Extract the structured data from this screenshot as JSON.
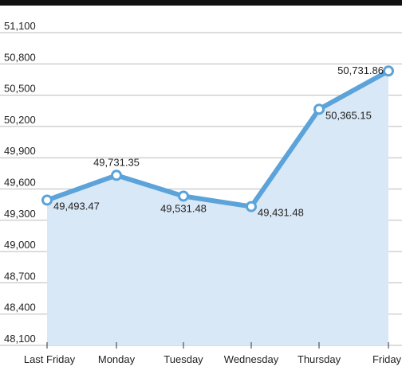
{
  "chart_data": {
    "type": "line",
    "categories": [
      "Last Friday",
      "Monday",
      "Tuesday",
      "Wednesday",
      "Thursday",
      "Friday"
    ],
    "values": [
      49493.47,
      49731.35,
      49531.48,
      49431.48,
      50365.15,
      50731.86
    ],
    "value_labels": [
      "49,493.47",
      "49,731.35",
      "49,531.48",
      "49,431.48",
      "50,365.15",
      "50,731.86"
    ],
    "color": "#5ba3d9",
    "area_color": "#d9e8f7",
    "ylim": [
      48100,
      51100
    ],
    "yticks": [
      {
        "value": 48100,
        "label": "48,100"
      },
      {
        "value": 48400,
        "label": "48,400"
      },
      {
        "value": 48700,
        "label": "48,700"
      },
      {
        "value": 49000,
        "label": "49,000"
      },
      {
        "value": 49300,
        "label": "49,300"
      },
      {
        "value": 49600,
        "label": "49,600"
      },
      {
        "value": 49900,
        "label": "49,900"
      },
      {
        "value": 50200,
        "label": "50,200"
      },
      {
        "value": 50500,
        "label": "50,500"
      },
      {
        "value": 50800,
        "label": "50,800"
      },
      {
        "value": 51100,
        "label": "51,100"
      }
    ],
    "grid": true
  }
}
